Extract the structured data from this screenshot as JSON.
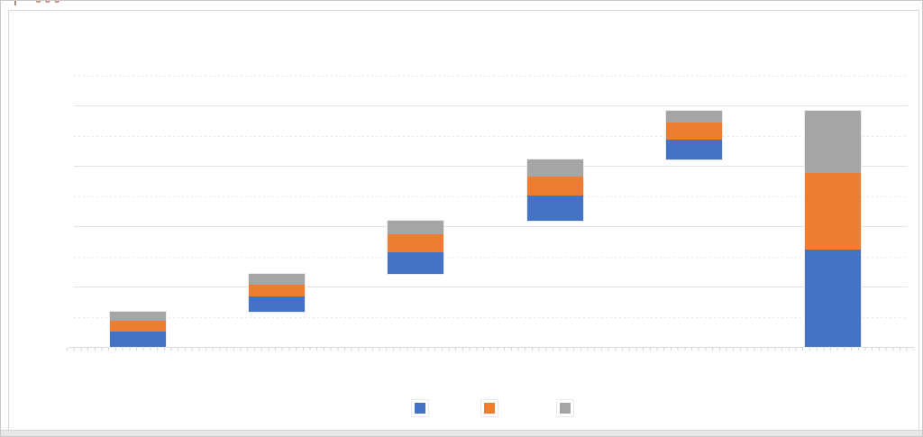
{
  "page": {
    "clipped_text_fragment": "000"
  },
  "chart_data": {
    "type": "bar",
    "subtype": "stacked-waterfall",
    "title": "",
    "xlabel": "",
    "ylabel": "",
    "categories": [
      "",
      "",
      "",
      "",
      "",
      ""
    ],
    "series": [
      {
        "name": "",
        "color": "#4472C4",
        "values": [
          25,
          26,
          35,
          42,
          33,
          161
        ]
      },
      {
        "name": "",
        "color": "#ED7D31",
        "values": [
          18,
          19,
          31,
          31,
          28,
          127
        ]
      },
      {
        "name": "",
        "color": "#A5A5A5",
        "values": [
          15,
          18,
          22,
          28,
          20,
          103
        ]
      }
    ],
    "base_offsets": [
      0,
      58,
      121,
      209,
      310,
      0
    ],
    "ylim": [
      0,
      450
    ],
    "gridlines": {
      "minor_step": 50,
      "major_step": 100,
      "minor_style": "dotted",
      "major_style": "solid"
    },
    "grid": true,
    "legend_position": "bottom",
    "legend_labels": [
      "",
      "",
      ""
    ],
    "axis_tick_labels": []
  },
  "colors": {
    "series_blue": "#4472C4",
    "series_orange": "#ED7D31",
    "series_gray": "#A5A5A5",
    "gridline_major": "#E2E2E2",
    "gridline_minor": "#E8E8E8",
    "axis_line": "#DADADA",
    "frame_border": "#D9D9D9",
    "canvas_border": "#C9C9C9",
    "bottom_strip": "#E7E7E7",
    "clipped_text_color": "#BE7A62"
  }
}
